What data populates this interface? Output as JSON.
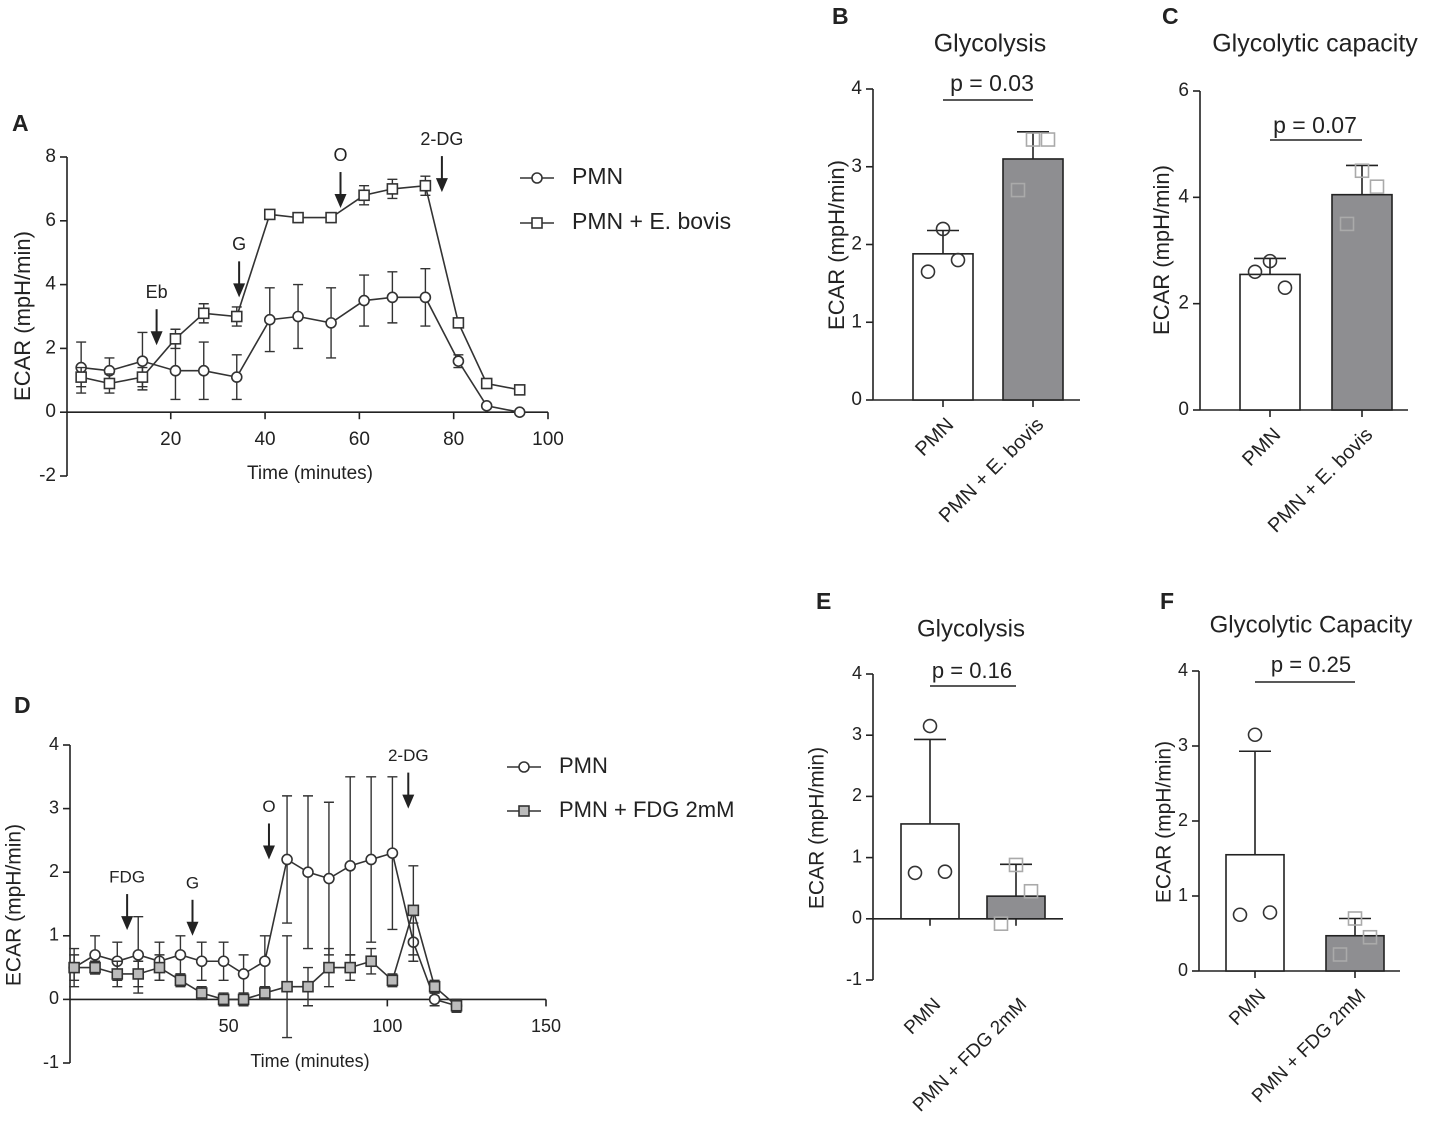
{
  "chart_data": [
    {
      "type": "line",
      "panel_label": "A",
      "ylabel": "ECAR (mpH/min)",
      "xlabel": "Time (minutes)",
      "x": [
        1,
        7,
        14,
        21,
        27,
        34,
        41,
        47,
        54,
        61,
        67,
        74,
        81,
        87,
        94
      ],
      "series": [
        {
          "name": "PMN",
          "color": "#333333",
          "marker": "circle",
          "marker_fill": "#ffffff",
          "values": [
            1.4,
            1.3,
            1.6,
            1.3,
            1.3,
            1.1,
            2.9,
            3.0,
            2.8,
            3.5,
            3.6,
            3.6,
            1.6,
            0.2,
            0.0
          ],
          "errors": [
            0.8,
            0.4,
            0.9,
            0.9,
            0.9,
            0.7,
            1.0,
            1.0,
            1.1,
            0.8,
            0.8,
            0.9,
            0.2,
            0,
            0
          ]
        },
        {
          "name": "PMN + E. bovis",
          "color": "#333333",
          "marker": "square",
          "marker_fill": "#ffffff",
          "values": [
            1.1,
            0.9,
            1.1,
            2.3,
            3.1,
            3.0,
            6.2,
            6.1,
            6.1,
            6.8,
            7.0,
            7.1,
            2.8,
            0.9,
            0.7
          ],
          "errors": [
            0.3,
            0.3,
            0.3,
            0.3,
            0.3,
            0.3,
            0.1,
            0.15,
            0.1,
            0.3,
            0.3,
            0.3,
            0,
            0,
            0
          ]
        }
      ],
      "annotations": [
        {
          "text": "Eb",
          "x": 17,
          "y": 2.1
        },
        {
          "text": "G",
          "x": 34.5,
          "y": 3.6
        },
        {
          "text": "O",
          "x": 56,
          "y": 6.4
        },
        {
          "text": "2-DG",
          "x": 77.5,
          "y": 6.9
        }
      ],
      "xlim": [
        -2,
        100
      ],
      "xticks": [
        20,
        40,
        60,
        80,
        100
      ],
      "ylim": [
        -2,
        8
      ],
      "yticks": [
        -2,
        0,
        2,
        4,
        6,
        8
      ]
    },
    {
      "type": "bar",
      "panel_label": "B",
      "title": "Glycolysis",
      "ylabel": "ECAR (mpH/min)",
      "p_value": "p = 0.03",
      "categories": [
        "PMN",
        "PMN + E. bovis"
      ],
      "values": [
        1.88,
        3.1
      ],
      "errors": [
        0.3,
        0.35
      ],
      "colors": [
        "#ffffff",
        "#8e8e91"
      ],
      "markers": [
        "circle",
        "square"
      ],
      "point_colors": [
        "#333333",
        "#aaaaaa"
      ],
      "points": [
        [
          2.2,
          1.65,
          1.8
        ],
        [
          3.35,
          3.35,
          2.7
        ]
      ],
      "ylim": [
        0,
        4
      ],
      "yticks": [
        0,
        1,
        2,
        3,
        4
      ]
    },
    {
      "type": "bar",
      "panel_label": "C",
      "title": "Glycolytic capacity",
      "ylabel": "ECAR (mpH/min)",
      "p_value": "p = 0.07",
      "categories": [
        "PMN",
        "PMN + E. bovis"
      ],
      "values": [
        2.55,
        4.05
      ],
      "errors": [
        0.3,
        0.55
      ],
      "colors": [
        "#ffffff",
        "#8e8e91"
      ],
      "markers": [
        "circle",
        "square"
      ],
      "point_colors": [
        "#333333",
        "#aaaaaa"
      ],
      "points": [
        [
          2.8,
          2.6,
          2.3
        ],
        [
          4.5,
          4.2,
          3.5
        ]
      ],
      "ylim": [
        0,
        6
      ],
      "yticks": [
        0,
        2,
        4,
        6
      ]
    },
    {
      "type": "line",
      "panel_label": "D",
      "ylabel": "ECAR (mpH/min)",
      "xlabel": "Time (minutes)",
      "x": [
        1.3,
        7.9,
        14.9,
        21.5,
        28.2,
        34.8,
        41.5,
        48.4,
        54.7,
        61.4,
        68.4,
        75,
        81.6,
        88.3,
        94.9,
        101.6,
        108.2,
        114.9,
        121.8
      ],
      "series": [
        {
          "name": "PMN",
          "color": "#333333",
          "marker": "circle",
          "marker_fill": "#ffffff",
          "values": [
            0.5,
            0.7,
            0.6,
            0.7,
            0.6,
            0.7,
            0.6,
            0.6,
            0.4,
            0.6,
            2.2,
            2.0,
            1.9,
            2.1,
            2.2,
            2.3,
            0.9,
            0.0,
            -0.1
          ],
          "errors": [
            0.3,
            0.3,
            0.3,
            0.6,
            0.3,
            0.3,
            0.3,
            0.3,
            0.3,
            0.4,
            1.0,
            1.2,
            1.2,
            1.4,
            1.3,
            1.2,
            0.3,
            0.1,
            0.1
          ]
        },
        {
          "name": "PMN + FDG 2mM",
          "color": "#333333",
          "marker": "square",
          "marker_fill": "#bbbbbb",
          "values": [
            0.5,
            0.5,
            0.4,
            0.4,
            0.5,
            0.3,
            0.1,
            0.0,
            0.0,
            0.1,
            0.2,
            0.2,
            0.5,
            0.5,
            0.6,
            0.3,
            1.4,
            0.2,
            -0.1
          ],
          "errors": [
            0.2,
            0.1,
            0.2,
            0.2,
            0.2,
            0.1,
            0.1,
            0.1,
            0.1,
            0.1,
            0.8,
            0.3,
            0.3,
            0.2,
            0.2,
            0.1,
            0.7,
            0.1,
            0.1
          ]
        }
      ],
      "annotations": [
        {
          "text": "FDG",
          "x": 18,
          "y": 1.09
        },
        {
          "text": "G",
          "x": 38.6,
          "y": 1.0
        },
        {
          "text": "O",
          "x": 62.7,
          "y": 2.2
        },
        {
          "text": "2-DG",
          "x": 106.6,
          "y": 3.0
        }
      ],
      "xlim": [
        0,
        150
      ],
      "xticks": [
        50,
        100,
        150
      ],
      "ylim": [
        -1,
        4
      ],
      "yticks": [
        -1,
        0,
        1,
        2,
        3,
        4
      ]
    },
    {
      "type": "bar",
      "panel_label": "E",
      "title": "Glycolysis",
      "ylabel": "ECAR (mpH/min)",
      "p_value": "p = 0.16",
      "categories": [
        "PMN",
        "PMN + FDG 2mM"
      ],
      "values": [
        1.55,
        0.37
      ],
      "errors": [
        1.38,
        0.52
      ],
      "colors": [
        "#ffffff",
        "#8e8e91"
      ],
      "markers": [
        "circle",
        "square"
      ],
      "point_colors": [
        "#333333",
        "#aaaaaa"
      ],
      "points": [
        [
          3.15,
          0.75,
          0.77
        ],
        [
          0.88,
          0.45,
          -0.08
        ]
      ],
      "ylim": [
        -1,
        4
      ],
      "yticks": [
        -1,
        0,
        1,
        2,
        3,
        4
      ]
    },
    {
      "type": "bar",
      "panel_label": "F",
      "title": "Glycolytic Capacity",
      "ylabel": "ECAR (mpH/min)",
      "p_value": "p = 0.25",
      "categories": [
        "PMN",
        "PMN + FDG 2mM"
      ],
      "values": [
        1.55,
        0.47
      ],
      "errors": [
        1.38,
        0.23
      ],
      "colors": [
        "#ffffff",
        "#8e8e91"
      ],
      "markers": [
        "circle",
        "square"
      ],
      "point_colors": [
        "#333333",
        "#aaaaaa"
      ],
      "points": [
        [
          3.15,
          0.75,
          0.78
        ],
        [
          0.7,
          0.45,
          0.22
        ]
      ],
      "ylim": [
        0,
        4
      ],
      "yticks": [
        0,
        1,
        2,
        3,
        4
      ]
    }
  ]
}
